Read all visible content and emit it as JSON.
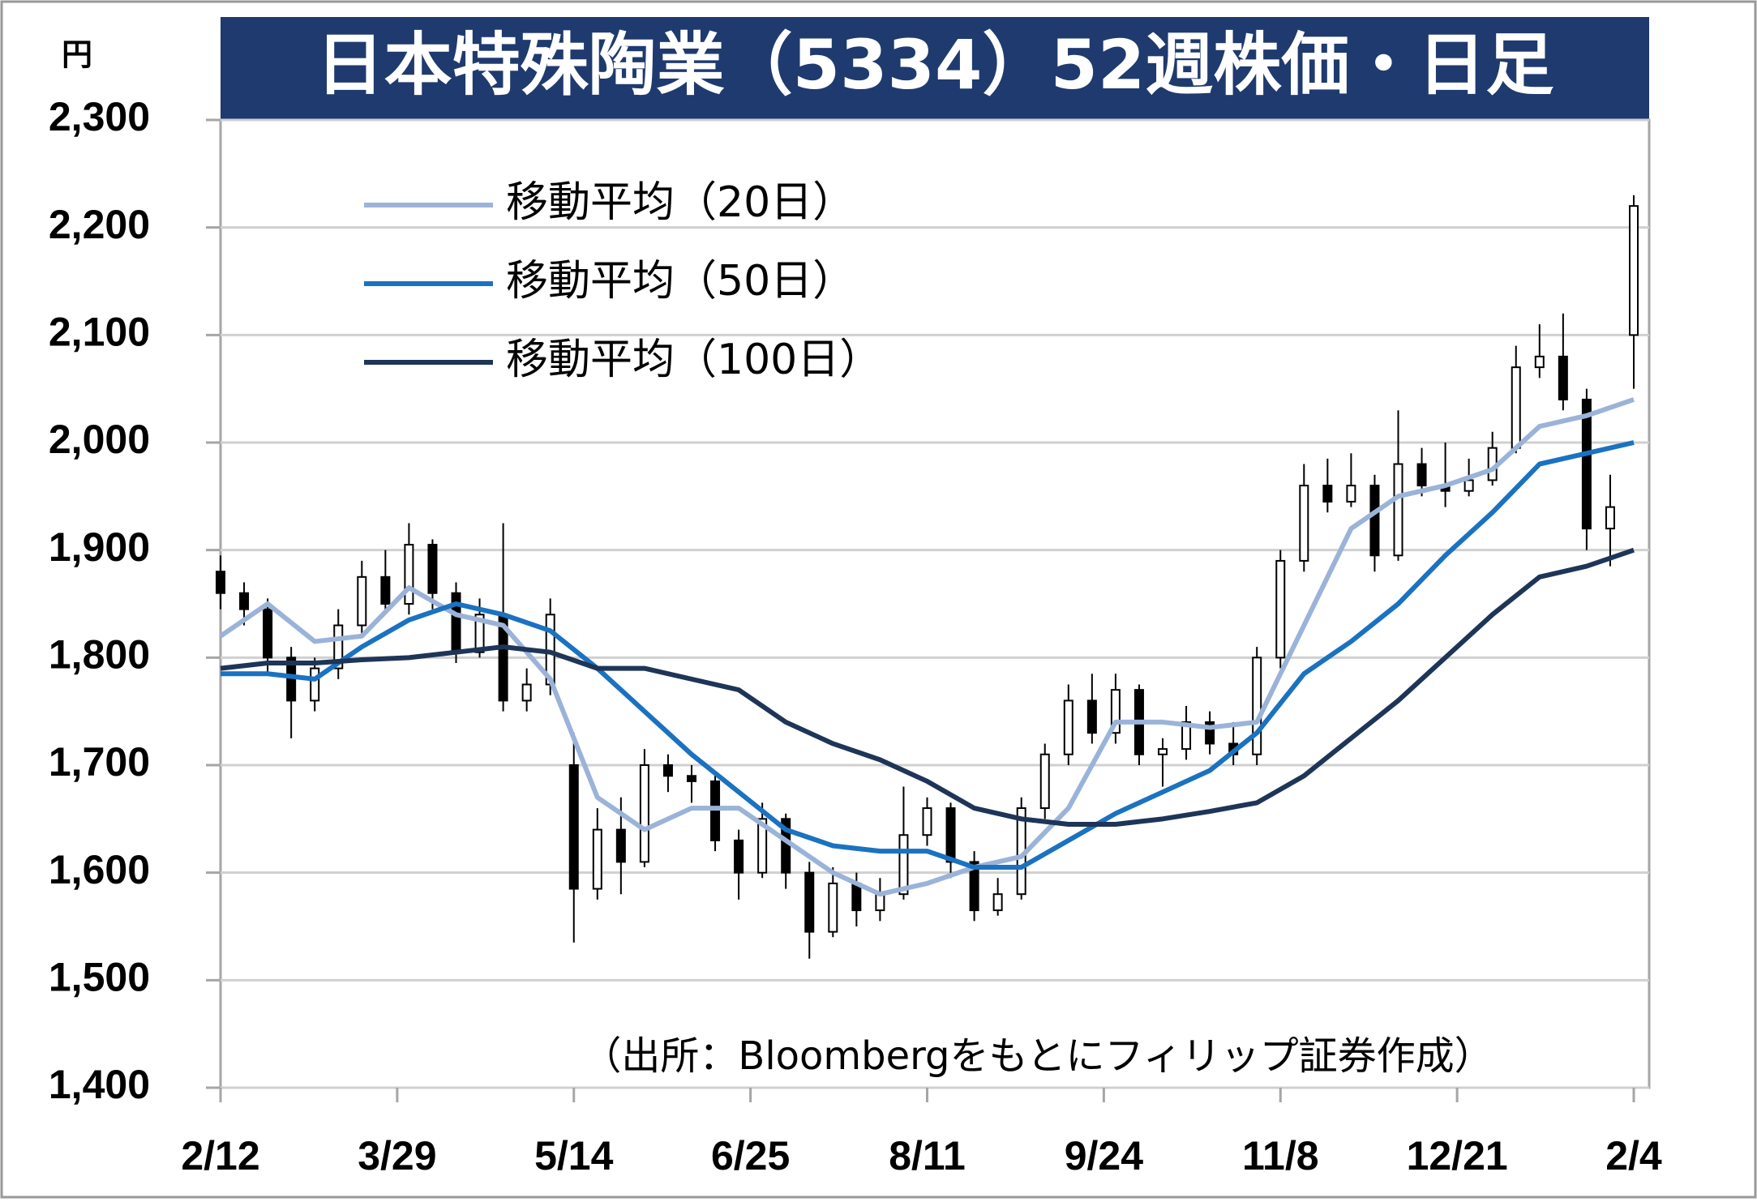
{
  "chart_data": {
    "type": "candlestick",
    "title": "日本特殊陶業（5334）52週株価・日足",
    "y_unit": "円",
    "source": "（出所：Bloombergをもとにフィリップ証券作成）",
    "ylim": [
      1400,
      2300
    ],
    "yticks": [
      {
        "value": 1400,
        "label": "1,400"
      },
      {
        "value": 1500,
        "label": "1,500"
      },
      {
        "value": 1600,
        "label": "1,600"
      },
      {
        "value": 1700,
        "label": "1,700"
      },
      {
        "value": 1800,
        "label": "1,800"
      },
      {
        "value": 1900,
        "label": "1,900"
      },
      {
        "value": 2000,
        "label": "2,000"
      },
      {
        "value": 2100,
        "label": "2,100"
      },
      {
        "value": 2200,
        "label": "2,200"
      },
      {
        "value": 2300,
        "label": "2,300"
      }
    ],
    "xlim": [
      0,
      240
    ],
    "xticks": [
      {
        "value": 0,
        "label": "2/12"
      },
      {
        "value": 30,
        "label": "3/29"
      },
      {
        "value": 60,
        "label": "5/14"
      },
      {
        "value": 90,
        "label": "6/25"
      },
      {
        "value": 120,
        "label": "8/11"
      },
      {
        "value": 150,
        "label": "9/24"
      },
      {
        "value": 180,
        "label": "11/8"
      },
      {
        "value": 210,
        "label": "12/21"
      },
      {
        "value": 240,
        "label": "2/4"
      }
    ],
    "grid": true,
    "up_color": "#ffffff",
    "down_color": "#000000",
    "candles": {
      "x": [
        0,
        4,
        8,
        12,
        16,
        20,
        24,
        28,
        32,
        36,
        40,
        44,
        48,
        52,
        56,
        60,
        64,
        68,
        72,
        76,
        80,
        84,
        88,
        92,
        96,
        100,
        104,
        108,
        112,
        116,
        120,
        124,
        128,
        132,
        136,
        140,
        144,
        148,
        152,
        156,
        160,
        164,
        168,
        172,
        176,
        180,
        184,
        188,
        192,
        196,
        200,
        204,
        208,
        212,
        216,
        220,
        224,
        228,
        232,
        236,
        240
      ],
      "open": [
        1880,
        1860,
        1845,
        1800,
        1760,
        1790,
        1830,
        1875,
        1850,
        1905,
        1860,
        1805,
        1840,
        1760,
        1775,
        1700,
        1585,
        1640,
        1610,
        1700,
        1690,
        1685,
        1630,
        1600,
        1650,
        1600,
        1545,
        1590,
        1565,
        1580,
        1635,
        1660,
        1610,
        1565,
        1580,
        1660,
        1710,
        1760,
        1730,
        1770,
        1710,
        1715,
        1740,
        1720,
        1710,
        1800,
        1890,
        1960,
        1945,
        1960,
        1895,
        1980,
        1960,
        1955,
        1965,
        1995,
        2070,
        2080,
        2040,
        1920,
        2100
      ],
      "high": [
        1895,
        1870,
        1855,
        1810,
        1800,
        1845,
        1890,
        1900,
        1925,
        1910,
        1870,
        1855,
        1925,
        1790,
        1855,
        1730,
        1660,
        1670,
        1715,
        1710,
        1700,
        1690,
        1640,
        1665,
        1655,
        1610,
        1605,
        1600,
        1595,
        1680,
        1670,
        1665,
        1620,
        1595,
        1670,
        1720,
        1775,
        1785,
        1785,
        1775,
        1725,
        1755,
        1750,
        1740,
        1810,
        1900,
        1980,
        1985,
        1990,
        1970,
        2030,
        1995,
        2000,
        1985,
        2010,
        2090,
        2110,
        2120,
        2050,
        1970,
        2230
      ],
      "low": [
        1845,
        1830,
        1785,
        1725,
        1750,
        1780,
        1820,
        1840,
        1840,
        1845,
        1795,
        1800,
        1750,
        1750,
        1765,
        1535,
        1575,
        1580,
        1605,
        1675,
        1665,
        1620,
        1575,
        1595,
        1585,
        1520,
        1540,
        1550,
        1555,
        1575,
        1625,
        1595,
        1555,
        1560,
        1575,
        1650,
        1700,
        1720,
        1720,
        1700,
        1680,
        1705,
        1710,
        1700,
        1700,
        1790,
        1880,
        1935,
        1940,
        1880,
        1890,
        1950,
        1940,
        1950,
        1960,
        1990,
        2060,
        2030,
        1900,
        1885,
        2050
      ],
      "close": [
        1860,
        1845,
        1800,
        1760,
        1790,
        1830,
        1875,
        1850,
        1905,
        1860,
        1805,
        1840,
        1760,
        1775,
        1840,
        1585,
        1640,
        1610,
        1700,
        1690,
        1685,
        1630,
        1600,
        1650,
        1600,
        1545,
        1590,
        1565,
        1580,
        1635,
        1660,
        1610,
        1565,
        1580,
        1660,
        1710,
        1760,
        1730,
        1770,
        1710,
        1715,
        1740,
        1720,
        1710,
        1800,
        1890,
        1960,
        1945,
        1960,
        1895,
        1980,
        1960,
        1955,
        1965,
        1995,
        2070,
        2080,
        2040,
        1920,
        1940,
        2220
      ]
    },
    "series": [
      {
        "name": "移動平均（20日）",
        "color": "#9bb3d9",
        "x": [
          0,
          8,
          16,
          24,
          32,
          40,
          48,
          56,
          64,
          72,
          80,
          88,
          96,
          104,
          112,
          120,
          128,
          136,
          144,
          152,
          160,
          168,
          176,
          184,
          192,
          200,
          208,
          216,
          224,
          232,
          240
        ],
        "values": [
          1820,
          1850,
          1815,
          1820,
          1865,
          1840,
          1830,
          1780,
          1670,
          1640,
          1660,
          1660,
          1630,
          1600,
          1580,
          1590,
          1605,
          1615,
          1660,
          1740,
          1740,
          1735,
          1740,
          1830,
          1920,
          1950,
          1960,
          1975,
          2015,
          2025,
          2040
        ]
      },
      {
        "name": "移動平均（50日）",
        "color": "#1a72c0",
        "x": [
          0,
          8,
          16,
          24,
          32,
          40,
          48,
          56,
          64,
          72,
          80,
          88,
          96,
          104,
          112,
          120,
          128,
          136,
          144,
          152,
          160,
          168,
          176,
          184,
          192,
          200,
          208,
          216,
          224,
          232,
          240
        ],
        "values": [
          1785,
          1785,
          1780,
          1810,
          1835,
          1850,
          1840,
          1825,
          1790,
          1750,
          1710,
          1675,
          1640,
          1625,
          1620,
          1620,
          1605,
          1605,
          1630,
          1655,
          1675,
          1695,
          1730,
          1785,
          1815,
          1850,
          1895,
          1935,
          1980,
          1990,
          2000
        ]
      },
      {
        "name": "移動平均（100日）",
        "color": "#1e3558",
        "x": [
          0,
          8,
          16,
          24,
          32,
          40,
          48,
          56,
          64,
          72,
          80,
          88,
          96,
          104,
          112,
          120,
          128,
          136,
          144,
          152,
          160,
          168,
          176,
          184,
          192,
          200,
          208,
          216,
          224,
          232,
          240
        ],
        "values": [
          1790,
          1795,
          1795,
          1798,
          1800,
          1805,
          1810,
          1805,
          1790,
          1790,
          1780,
          1770,
          1740,
          1720,
          1705,
          1685,
          1660,
          1650,
          1645,
          1645,
          1650,
          1657,
          1665,
          1690,
          1725,
          1760,
          1800,
          1840,
          1875,
          1885,
          1900
        ]
      }
    ]
  }
}
